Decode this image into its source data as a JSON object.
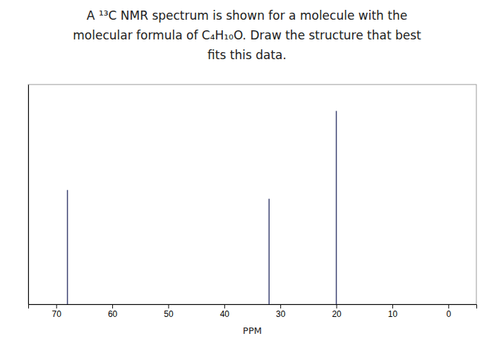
{
  "chart_data": {
    "type": "stem",
    "title": [
      "A ¹³C NMR spectrum is shown for a molecule with the",
      "molecular formula of C₄H₁₀O. Draw the structure that best",
      "fits this data."
    ],
    "x": [
      68,
      32,
      20
    ],
    "values": [
      0.52,
      0.48,
      0.88
    ],
    "color": "#3a4070",
    "xlim": [
      75,
      -5
    ],
    "ylim": [
      0,
      1.0
    ],
    "xticks": [
      70,
      60,
      50,
      40,
      30,
      20,
      10,
      0
    ],
    "xlabel": "PPM",
    "tick_labels": "x",
    "grid": false
  }
}
